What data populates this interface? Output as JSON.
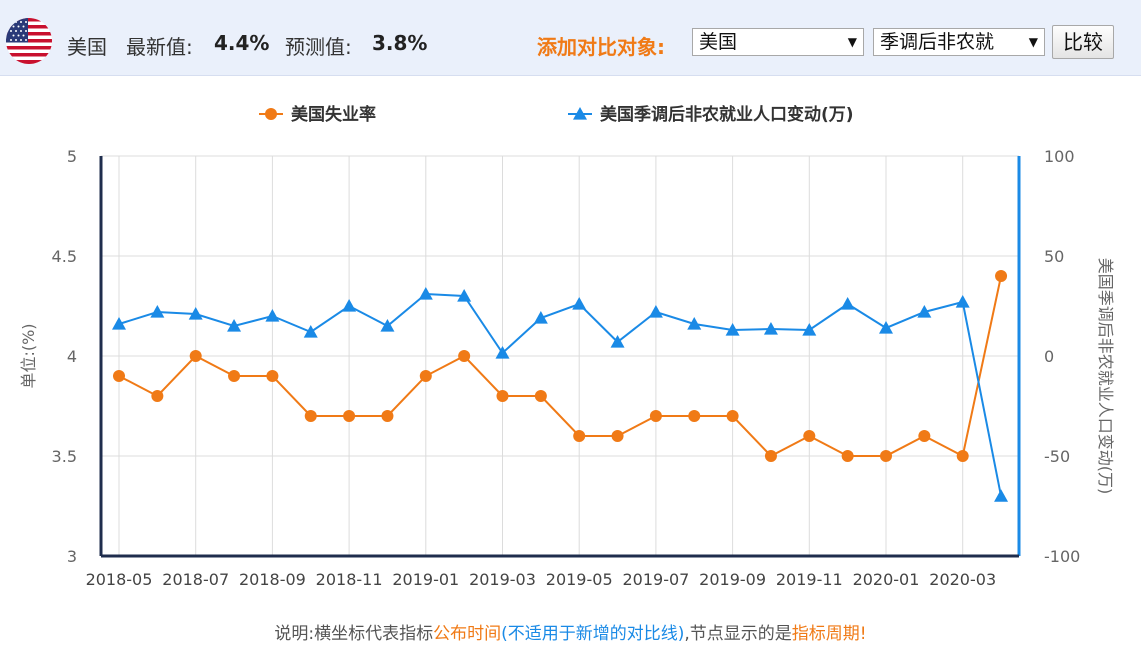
{
  "header": {
    "country": "美国",
    "latest_label": "最新值:",
    "latest_value": "4.4%",
    "forecast_label": "预测值:",
    "forecast_value": "3.8%",
    "compare_label": "添加对比对象:",
    "country_select": "美国",
    "indicator_select": "季调后非农就",
    "compare_button": "比较",
    "flag_icon": "us-flag-icon"
  },
  "note": {
    "prefix": "说明:横坐标代表指标",
    "publish_time": "公布时间",
    "paren_open": "(",
    "not_applicable": "不适用于新增的对比线",
    "paren_close": ")",
    "middle": ",节点显示的是",
    "period": "指标周期!"
  },
  "chart_data": {
    "type": "line",
    "x": [
      "2018-05",
      "2018-06",
      "2018-07",
      "2018-08",
      "2018-09",
      "2018-10",
      "2018-11",
      "2018-12",
      "2019-01",
      "2019-02",
      "2019-03",
      "2019-04",
      "2019-05",
      "2019-06",
      "2019-07",
      "2019-08",
      "2019-09",
      "2019-10",
      "2019-11",
      "2019-12",
      "2020-01",
      "2020-02",
      "2020-03",
      "2020-04"
    ],
    "tick_labels": [
      "2018-05",
      "2018-07",
      "2018-09",
      "2018-11",
      "2019-01",
      "2019-03",
      "2019-05",
      "2019-07",
      "2019-09",
      "2019-11",
      "2020-01",
      "2020-03"
    ],
    "series": [
      {
        "name": "美国失业率",
        "axis": "left",
        "color": "#f07a16",
        "marker": "circle",
        "values": [
          3.9,
          3.8,
          4.0,
          3.9,
          3.9,
          3.7,
          3.7,
          3.7,
          3.9,
          4.0,
          3.8,
          3.8,
          3.6,
          3.6,
          3.7,
          3.7,
          3.7,
          3.5,
          3.6,
          3.5,
          3.5,
          3.6,
          3.5,
          4.4
        ]
      },
      {
        "name": "美国季调后非农就业人口变动(万)",
        "axis": "right",
        "color": "#1a8ae6",
        "marker": "triangle",
        "values": [
          16,
          22,
          21,
          15,
          20,
          12,
          25,
          15,
          31,
          30,
          1.5,
          19,
          26,
          7,
          22,
          16,
          13,
          13.5,
          13,
          26,
          14,
          22,
          27,
          -70.1
        ]
      }
    ],
    "ylabel_left": "单位:(%)",
    "ylabel_right": "美国季调后非农就业人口变动(万)",
    "ylim_left": [
      3,
      5
    ],
    "ylim_right": [
      -100,
      100
    ],
    "yticks_left": [
      "3",
      "3.5",
      "4",
      "4.5",
      "5"
    ],
    "yticks_right": [
      "-100",
      "-50",
      "0",
      "50",
      "100"
    ],
    "grid": true,
    "legend_position": "top-center",
    "left_axis_color": "#1f2d4d",
    "right_axis_color": "#1a8ae6"
  }
}
